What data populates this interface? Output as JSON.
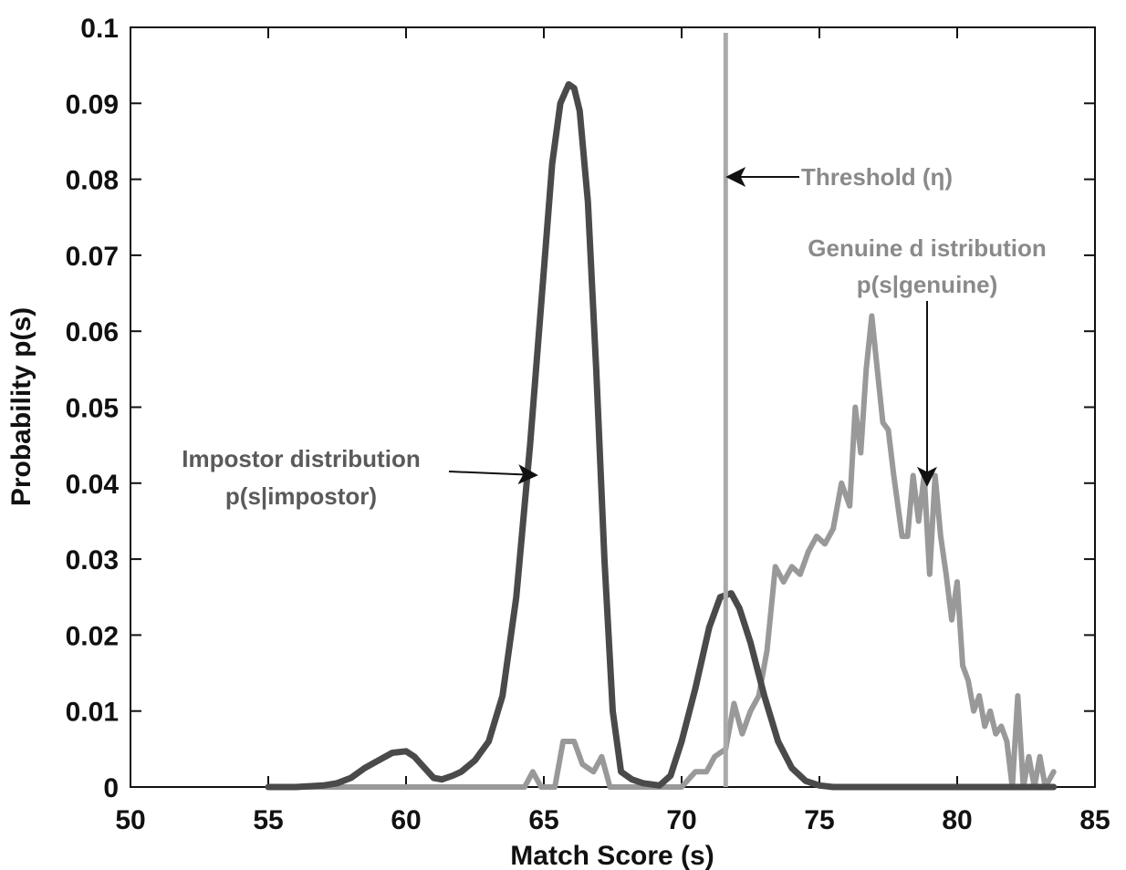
{
  "chart_data": {
    "type": "line",
    "xlabel": "Match Score (s)",
    "ylabel": "Probability p(s)",
    "xlim": [
      50,
      85
    ],
    "ylim": [
      0,
      0.1
    ],
    "x_ticks": [
      "50",
      "55",
      "60",
      "65",
      "70",
      "75",
      "80",
      "85"
    ],
    "y_ticks": [
      "0",
      "0.01",
      "0.02",
      "0.03",
      "0.04",
      "0.05",
      "0.06",
      "0.07",
      "0.08",
      "0.09",
      "0.1"
    ],
    "grid": false,
    "colors": {
      "impostor": "#4a4a4a",
      "genuine": "#999999",
      "threshold": "#aaaaaa",
      "axis": "#111111"
    },
    "threshold": {
      "x": 71.6
    },
    "series": [
      {
        "key": "impostor",
        "x": [
          55,
          56,
          57,
          57.5,
          58,
          58.5,
          59,
          59.5,
          60,
          60.3,
          60.6,
          61,
          61.3,
          61.7,
          62,
          62.5,
          63,
          63.5,
          64,
          64.5,
          65,
          65.3,
          65.6,
          65.9,
          66.1,
          66.3,
          66.6,
          66.9,
          67.2,
          67.5,
          67.8,
          68.2,
          68.6,
          69.2,
          69.6,
          70,
          70.5,
          71,
          71.4,
          71.8,
          72.1,
          72.5,
          73,
          73.5,
          74,
          74.5,
          75,
          75.5,
          76,
          77,
          78,
          79,
          80,
          81,
          82,
          83,
          83.5
        ],
        "values": [
          0,
          0,
          0.0002,
          0.0005,
          0.0012,
          0.0025,
          0.0035,
          0.0045,
          0.0047,
          0.004,
          0.0028,
          0.0012,
          0.001,
          0.0015,
          0.002,
          0.0035,
          0.006,
          0.012,
          0.025,
          0.045,
          0.068,
          0.082,
          0.09,
          0.0925,
          0.092,
          0.089,
          0.077,
          0.055,
          0.03,
          0.01,
          0.002,
          0.001,
          0.0005,
          0.0002,
          0.0015,
          0.006,
          0.013,
          0.021,
          0.025,
          0.0255,
          0.0235,
          0.019,
          0.012,
          0.006,
          0.0025,
          0.0008,
          0.0002,
          0,
          0,
          0,
          0,
          0,
          0,
          0,
          0,
          0,
          0
        ]
      },
      {
        "key": "genuine",
        "x": [
          55,
          64.3,
          64.6,
          64.9,
          65.4,
          65.7,
          66.1,
          66.4,
          66.8,
          67.1,
          67.4,
          70,
          70.5,
          70.9,
          71.2,
          71.6,
          71.9,
          72.2,
          72.5,
          72.8,
          73.1,
          73.4,
          73.7,
          74,
          74.3,
          74.6,
          74.9,
          75.2,
          75.5,
          75.8,
          76.1,
          76.3,
          76.5,
          76.7,
          76.9,
          77.1,
          77.3,
          77.5,
          77.7,
          78,
          78.2,
          78.4,
          78.6,
          78.8,
          79,
          79.2,
          79.4,
          79.6,
          79.8,
          80,
          80.2,
          80.4,
          80.6,
          80.8,
          81,
          81.2,
          81.4,
          81.6,
          81.8,
          82,
          82.2,
          82.4,
          82.6,
          82.8,
          83,
          83.2,
          83.5
        ],
        "values": [
          0,
          0,
          0.002,
          0,
          0,
          0.006,
          0.006,
          0.003,
          0.002,
          0.004,
          0,
          0,
          0.002,
          0.002,
          0.004,
          0.005,
          0.011,
          0.007,
          0.01,
          0.012,
          0.018,
          0.029,
          0.027,
          0.029,
          0.028,
          0.031,
          0.033,
          0.032,
          0.034,
          0.04,
          0.037,
          0.05,
          0.044,
          0.055,
          0.062,
          0.055,
          0.048,
          0.047,
          0.041,
          0.033,
          0.033,
          0.041,
          0.035,
          0.041,
          0.028,
          0.041,
          0.033,
          0.028,
          0.022,
          0.027,
          0.016,
          0.014,
          0.01,
          0.012,
          0.008,
          0.01,
          0.007,
          0.008,
          0.006,
          0,
          0.012,
          0.0,
          0.004,
          0.0,
          0.004,
          0.0,
          0.002
        ]
      }
    ],
    "annotations": {
      "threshold": "Threshold (η)",
      "impostor_line1": "Impostor distribution",
      "impostor_line2": "p(s|impostor)",
      "genuine_line1": "Genuine d istribution",
      "genuine_line2": "p(s|genuine)"
    }
  }
}
